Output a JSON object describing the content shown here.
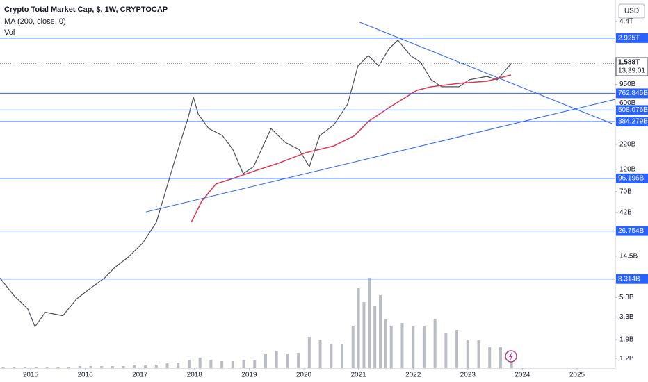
{
  "chart_data": {
    "type": "line",
    "title": "Crypto Total Market Cap, $, 1W, CRYPTOCAP",
    "currency": "USD",
    "log_scale": true,
    "xlim": [
      2014.44,
      2025.7
    ],
    "xticks": [
      2015,
      2016,
      2017,
      2018,
      2019,
      2020,
      2021,
      2022,
      2023,
      2024,
      2025
    ],
    "ylim": [
      0.95,
      7400
    ],
    "yticks": [
      {
        "value": 4400,
        "label": "4.4T"
      },
      {
        "value": 950,
        "label": "950B"
      },
      {
        "value": 600,
        "label": "600B"
      },
      {
        "value": 220,
        "label": "220B"
      },
      {
        "value": 120,
        "label": "120B"
      },
      {
        "value": 70,
        "label": "70B"
      },
      {
        "value": 42,
        "label": "42B"
      },
      {
        "value": 14.5,
        "label": "14.5B"
      },
      {
        "value": 5.3,
        "label": "5.3B"
      },
      {
        "value": 3.3,
        "label": "3.3B"
      },
      {
        "value": 1.9,
        "label": "1.9B"
      },
      {
        "value": 1.2,
        "label": "1.2B"
      }
    ],
    "y2lim": [
      0,
      140
    ],
    "series": [
      {
        "color": "#4a4e59",
        "x": [
          2014.44,
          2014.69,
          2014.95,
          2015.08,
          2015.27,
          2015.59,
          2015.84,
          2016.09,
          2016.35,
          2016.54,
          2016.79,
          2017.05,
          2017.3,
          2017.49,
          2017.68,
          2017.88,
          2017.98,
          2018.07,
          2018.26,
          2018.51,
          2018.7,
          2018.89,
          2019.08,
          2019.4,
          2019.66,
          2019.91,
          2020.1,
          2020.29,
          2020.55,
          2020.8,
          2020.99,
          2021.18,
          2021.37,
          2021.56,
          2021.72,
          2021.95,
          2022.14,
          2022.33,
          2022.52,
          2022.84,
          2023.03,
          2023.35,
          2023.54,
          2023.79
        ],
        "values": [
          8.5,
          5.6,
          4.0,
          2.6,
          3.7,
          3.4,
          5.1,
          6.6,
          8.5,
          11.0,
          14.2,
          19.9,
          33,
          77,
          180,
          417,
          693,
          456,
          324,
          273,
          195,
          108,
          128,
          324,
          231,
          195,
          128,
          273,
          354,
          585,
          1486,
          1916,
          1486,
          2270,
          2779,
          1916,
          1618,
          1060,
          895,
          895,
          1060,
          1153,
          1060,
          1565
        ]
      },
      {
        "name": "MA (200, close, 0)",
        "color": "#e0344f",
        "x": [
          2017.94,
          2018.13,
          2018.39,
          2018.77,
          2019.15,
          2019.53,
          2020.04,
          2020.55,
          2020.93,
          2021.18,
          2021.56,
          2022.07,
          2022.33,
          2022.84,
          2023.35,
          2023.79
        ],
        "values": [
          33,
          55,
          84,
          99,
          118,
          139,
          180,
          212,
          273,
          384,
          539,
          822,
          895,
          973,
          1024,
          1193
        ]
      },
      {
        "name": "Vol",
        "color": "#a9acb5",
        "axis": "y2",
        "x": [
          2014.5,
          2014.7,
          2014.9,
          2015.1,
          2015.3,
          2015.5,
          2015.7,
          2015.9,
          2016.1,
          2016.3,
          2016.5,
          2016.7,
          2016.9,
          2017.1,
          2017.3,
          2017.5,
          2017.7,
          2017.9,
          2018.1,
          2018.3,
          2018.5,
          2018.7,
          2018.9,
          2019.1,
          2019.3,
          2019.5,
          2019.7,
          2019.9,
          2020.1,
          2020.3,
          2020.5,
          2020.7,
          2020.9,
          2021.0,
          2021.1,
          2021.2,
          2021.3,
          2021.4,
          2021.5,
          2021.6,
          2021.8,
          2022.0,
          2022.2,
          2022.4,
          2022.6,
          2022.8,
          2023.0,
          2023.2,
          2023.4,
          2023.6,
          2023.8
        ],
        "values": [
          2,
          2,
          2,
          2,
          2,
          2,
          2,
          3,
          3,
          3,
          3,
          3,
          4,
          4,
          5,
          7,
          8,
          12,
          15,
          12,
          10,
          10,
          12,
          12,
          20,
          25,
          20,
          22,
          45,
          40,
          35,
          35,
          60,
          115,
          95,
          130,
          90,
          105,
          70,
          60,
          65,
          60,
          60,
          70,
          50,
          55,
          40,
          40,
          30,
          30,
          25
        ]
      }
    ],
    "levels": [
      {
        "value": 2925,
        "label": "2.925T"
      },
      {
        "value": 762.845,
        "label": "762.845B"
      },
      {
        "value": 508.076,
        "label": "508.076B"
      },
      {
        "value": 384.279,
        "label": "384.279B"
      },
      {
        "value": 96.196,
        "label": "96.196B"
      },
      {
        "value": 26.754,
        "label": "26.754B"
      },
      {
        "value": 8.314,
        "label": "8.314B"
      }
    ],
    "level_color": "#2962ff",
    "last_price": {
      "value": 1588,
      "label": "1.588T",
      "countdown": "13:39:01"
    },
    "trend_lines": [
      {
        "color": "#2962ff",
        "x": [
          2021.02,
          2025.64
        ],
        "values": [
          4317,
          365
        ]
      },
      {
        "color": "#2962ff",
        "x": [
          2017.11,
          2025.7
        ],
        "values": [
          42.5,
          660
        ]
      }
    ]
  }
}
